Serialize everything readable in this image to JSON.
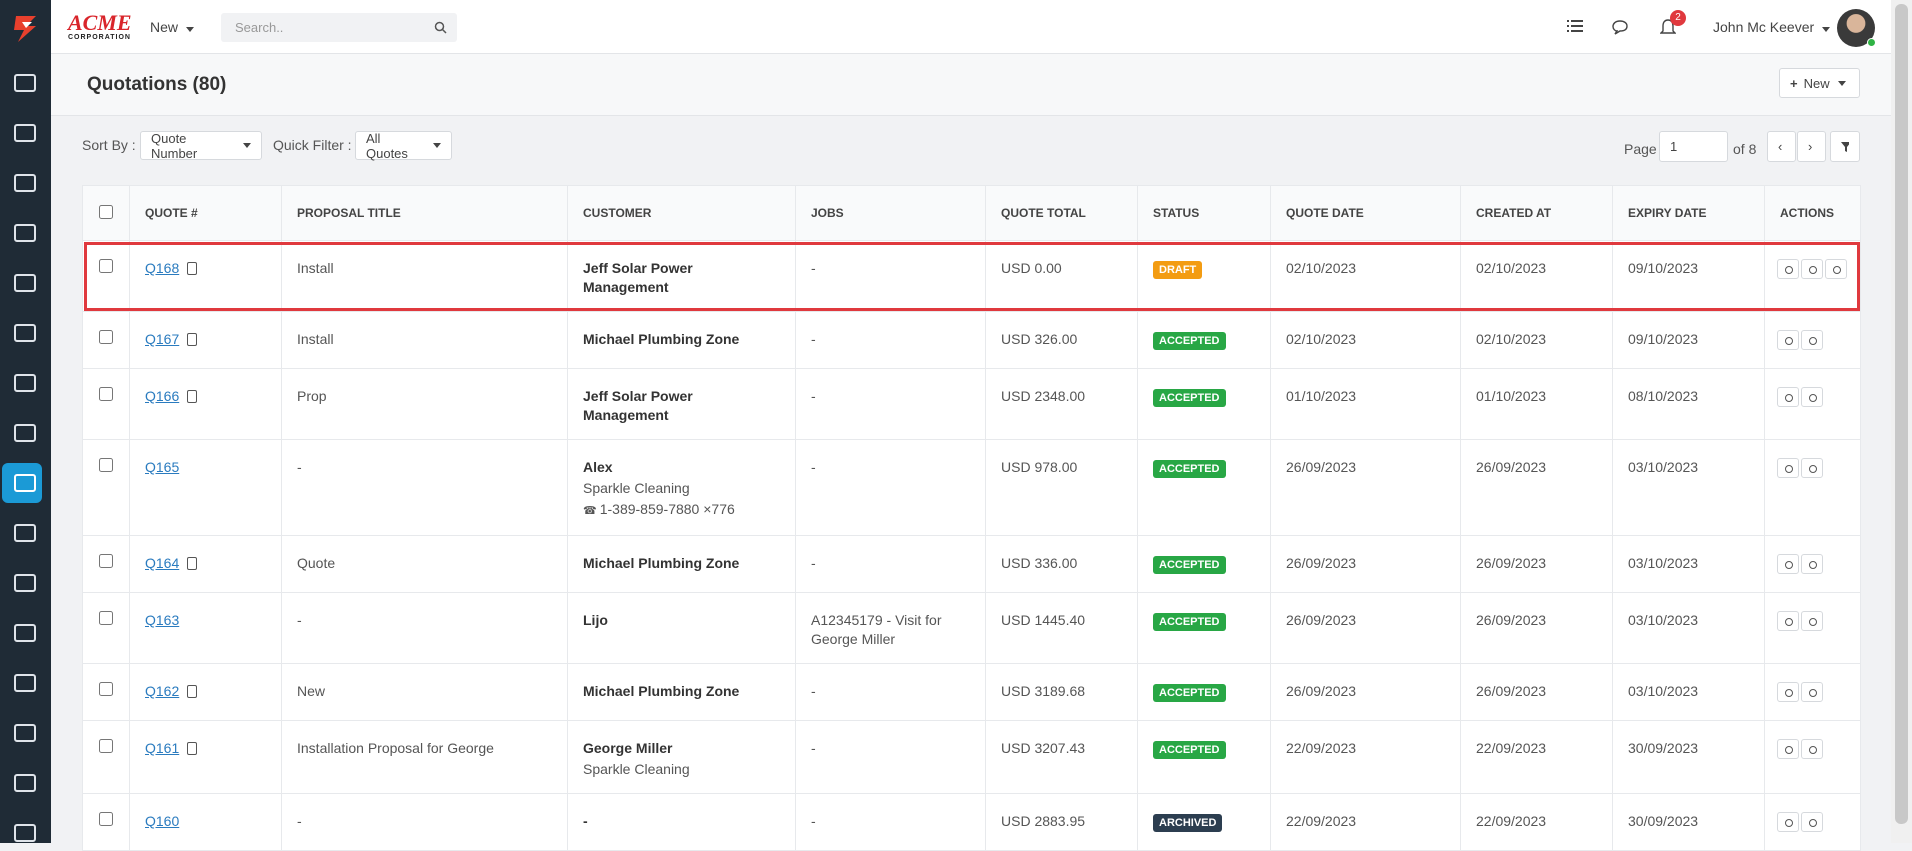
{
  "header": {
    "brand": "ACME",
    "brand_sub": "CORPORATION",
    "new_menu": "New",
    "search_placeholder": "Search..",
    "notification_count": "2",
    "user_name": "John Mc Keever"
  },
  "page": {
    "title": "Quotations (80)",
    "new_button": "New",
    "sort_label": "Sort By :",
    "sort_value": "Quote Number",
    "filter_label": "Quick Filter :",
    "filter_value": "All Quotes",
    "page_label": "Page",
    "page_value": "1",
    "page_of": "of 8"
  },
  "table": {
    "columns": [
      "QUOTE #",
      "PROPOSAL TITLE",
      "CUSTOMER",
      "JOBS",
      "QUOTE TOTAL",
      "STATUS",
      "QUOTE DATE",
      "CREATED AT",
      "EXPIRY DATE",
      "ACTIONS"
    ],
    "rows": [
      {
        "quote": "Q168",
        "copy": true,
        "title": "Install",
        "customer": [
          "Jeff Solar Power Management"
        ],
        "jobs": [
          "-"
        ],
        "total": "USD 0.00",
        "status": {
          "label": "DRAFT",
          "color": "#f39c12"
        },
        "quote_date": "02/10/2023",
        "created_at": "02/10/2023",
        "expiry_date": "09/10/2023",
        "editable": true,
        "highlighted": true
      },
      {
        "quote": "Q167",
        "copy": true,
        "title": "Install",
        "customer": [
          "Michael Plumbing Zone"
        ],
        "jobs": [
          "-"
        ],
        "total": "USD 326.00",
        "status": {
          "label": "ACCEPTED",
          "color": "#28a745"
        },
        "quote_date": "02/10/2023",
        "created_at": "02/10/2023",
        "expiry_date": "09/10/2023"
      },
      {
        "quote": "Q166",
        "copy": true,
        "title": "Prop",
        "customer": [
          "Jeff Solar Power Management"
        ],
        "jobs": [
          "-"
        ],
        "total": "USD 2348.00",
        "status": {
          "label": "ACCEPTED",
          "color": "#28a745"
        },
        "quote_date": "01/10/2023",
        "created_at": "01/10/2023",
        "expiry_date": "08/10/2023"
      },
      {
        "quote": "Q165",
        "copy": false,
        "title": "-",
        "customer": [
          "Alex",
          "Sparkle Cleaning"
        ],
        "phone": "1-389-859-7880 ×776",
        "jobs": [
          "-"
        ],
        "total": "USD 978.00",
        "status": {
          "label": "ACCEPTED",
          "color": "#28a745"
        },
        "quote_date": "26/09/2023",
        "created_at": "26/09/2023",
        "expiry_date": "03/10/2023"
      },
      {
        "quote": "Q164",
        "copy": true,
        "title": "Quote",
        "customer": [
          "Michael Plumbing Zone"
        ],
        "jobs": [
          "-"
        ],
        "total": "USD 336.00",
        "status": {
          "label": "ACCEPTED",
          "color": "#28a745"
        },
        "quote_date": "26/09/2023",
        "created_at": "26/09/2023",
        "expiry_date": "03/10/2023"
      },
      {
        "quote": "Q163",
        "copy": false,
        "title": "-",
        "customer": [
          "Lijo"
        ],
        "jobs": [
          "A12345179 - Visit for",
          "George Miller"
        ],
        "total": "USD 1445.40",
        "status": {
          "label": "ACCEPTED",
          "color": "#28a745"
        },
        "quote_date": "26/09/2023",
        "created_at": "26/09/2023",
        "expiry_date": "03/10/2023"
      },
      {
        "quote": "Q162",
        "copy": true,
        "title": "New",
        "customer": [
          "Michael Plumbing Zone"
        ],
        "jobs": [
          "-"
        ],
        "total": "USD 3189.68",
        "status": {
          "label": "ACCEPTED",
          "color": "#28a745"
        },
        "quote_date": "26/09/2023",
        "created_at": "26/09/2023",
        "expiry_date": "03/10/2023"
      },
      {
        "quote": "Q161",
        "copy": true,
        "title": "Installation Proposal for George",
        "customer": [
          "George Miller",
          "Sparkle Cleaning"
        ],
        "jobs": [
          "-"
        ],
        "total": "USD 3207.43",
        "status": {
          "label": "ACCEPTED",
          "color": "#28a745"
        },
        "quote_date": "22/09/2023",
        "created_at": "22/09/2023",
        "expiry_date": "30/09/2023"
      },
      {
        "quote": "Q160",
        "copy": false,
        "title": "-",
        "customer": [
          "-"
        ],
        "jobs": [
          "-"
        ],
        "total": "USD 2883.95",
        "status": {
          "label": "ARCHIVED",
          "color": "#2c3e50"
        },
        "quote_date": "22/09/2023",
        "created_at": "22/09/2023",
        "expiry_date": "30/09/2023"
      }
    ]
  }
}
